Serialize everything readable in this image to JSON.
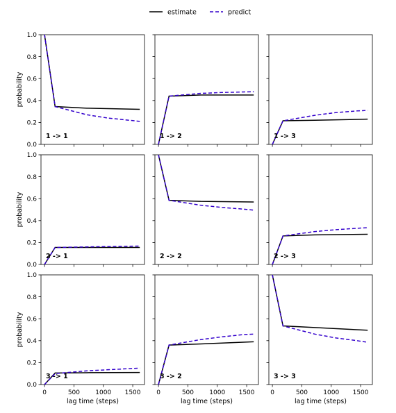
{
  "chart_data": {
    "type": "line",
    "legend": {
      "placement": "top-center",
      "entries": [
        {
          "label": "estimate",
          "color": "#000000",
          "style": "solid"
        },
        {
          "label": "predict",
          "color": "#3300cc",
          "style": "dashed"
        }
      ]
    },
    "grid": false,
    "xlabel": "lag time (steps)",
    "ylabel": "probability",
    "xlim": [
      -60,
      1700
    ],
    "ylim": [
      0,
      1
    ],
    "xticks": [
      0,
      500,
      1000,
      1500
    ],
    "yticks": [
      0.0,
      0.2,
      0.4,
      0.6,
      0.8,
      1.0
    ],
    "xtick_labels": [
      "0",
      "500",
      "1000",
      "1500"
    ],
    "ytick_labels": [
      "0.0",
      "0.2",
      "0.4",
      "0.6",
      "0.8",
      "1.0"
    ],
    "panels": [
      {
        "label": "1 -> 1",
        "row": 0,
        "col": 0,
        "estimate": {
          "x": [
            0,
            180,
            720,
            1620
          ],
          "y": [
            1.0,
            0.345,
            0.33,
            0.32
          ]
        },
        "predict": {
          "x": [
            0,
            180,
            720,
            1080,
            1440,
            1620
          ],
          "y": [
            1.0,
            0.345,
            0.27,
            0.24,
            0.22,
            0.21
          ]
        }
      },
      {
        "label": "1 -> 2",
        "row": 0,
        "col": 1,
        "estimate": {
          "x": [
            0,
            180,
            720,
            1620
          ],
          "y": [
            0.0,
            0.44,
            0.45,
            0.45
          ]
        },
        "predict": {
          "x": [
            0,
            180,
            720,
            1080,
            1440,
            1620
          ],
          "y": [
            0.0,
            0.44,
            0.465,
            0.473,
            0.478,
            0.48
          ]
        }
      },
      {
        "label": "1 -> 3",
        "row": 0,
        "col": 2,
        "estimate": {
          "x": [
            0,
            180,
            720,
            1620
          ],
          "y": [
            0.0,
            0.215,
            0.22,
            0.23
          ]
        },
        "predict": {
          "x": [
            0,
            180,
            720,
            1080,
            1440,
            1620
          ],
          "y": [
            0.0,
            0.215,
            0.265,
            0.29,
            0.305,
            0.31
          ]
        }
      },
      {
        "label": "2 -> 1",
        "row": 1,
        "col": 0,
        "estimate": {
          "x": [
            0,
            180,
            720,
            1620
          ],
          "y": [
            0.0,
            0.155,
            0.155,
            0.155
          ]
        },
        "predict": {
          "x": [
            0,
            180,
            720,
            1080,
            1440,
            1620
          ],
          "y": [
            0.0,
            0.155,
            0.16,
            0.163,
            0.166,
            0.168
          ]
        }
      },
      {
        "label": "2 -> 2",
        "row": 1,
        "col": 1,
        "estimate": {
          "x": [
            0,
            180,
            720,
            1620
          ],
          "y": [
            1.0,
            0.585,
            0.575,
            0.57
          ]
        },
        "predict": {
          "x": [
            0,
            180,
            720,
            1080,
            1440,
            1620
          ],
          "y": [
            1.0,
            0.585,
            0.54,
            0.52,
            0.505,
            0.495
          ]
        }
      },
      {
        "label": "2 -> 3",
        "row": 1,
        "col": 2,
        "estimate": {
          "x": [
            0,
            180,
            720,
            1620
          ],
          "y": [
            0.0,
            0.26,
            0.27,
            0.275
          ]
        },
        "predict": {
          "x": [
            0,
            180,
            720,
            1080,
            1440,
            1620
          ],
          "y": [
            0.0,
            0.26,
            0.3,
            0.317,
            0.33,
            0.335
          ]
        }
      },
      {
        "label": "3 -> 1",
        "row": 2,
        "col": 0,
        "estimate": {
          "x": [
            0,
            180,
            720,
            1620
          ],
          "y": [
            0.0,
            0.105,
            0.108,
            0.11
          ]
        },
        "predict": {
          "x": [
            0,
            180,
            720,
            1080,
            1440,
            1620
          ],
          "y": [
            0.0,
            0.1,
            0.125,
            0.135,
            0.145,
            0.15
          ]
        }
      },
      {
        "label": "3 -> 2",
        "row": 2,
        "col": 1,
        "estimate": {
          "x": [
            0,
            180,
            720,
            1620
          ],
          "y": [
            0.0,
            0.36,
            0.37,
            0.39
          ]
        },
        "predict": {
          "x": [
            0,
            180,
            720,
            1080,
            1440,
            1620
          ],
          "y": [
            0.0,
            0.36,
            0.41,
            0.435,
            0.455,
            0.46
          ]
        }
      },
      {
        "label": "3 -> 3",
        "row": 2,
        "col": 2,
        "estimate": {
          "x": [
            0,
            180,
            720,
            1620
          ],
          "y": [
            1.0,
            0.535,
            0.52,
            0.495
          ]
        },
        "predict": {
          "x": [
            0,
            180,
            720,
            1080,
            1440,
            1620
          ],
          "y": [
            1.0,
            0.535,
            0.46,
            0.425,
            0.4,
            0.385
          ]
        }
      }
    ]
  }
}
